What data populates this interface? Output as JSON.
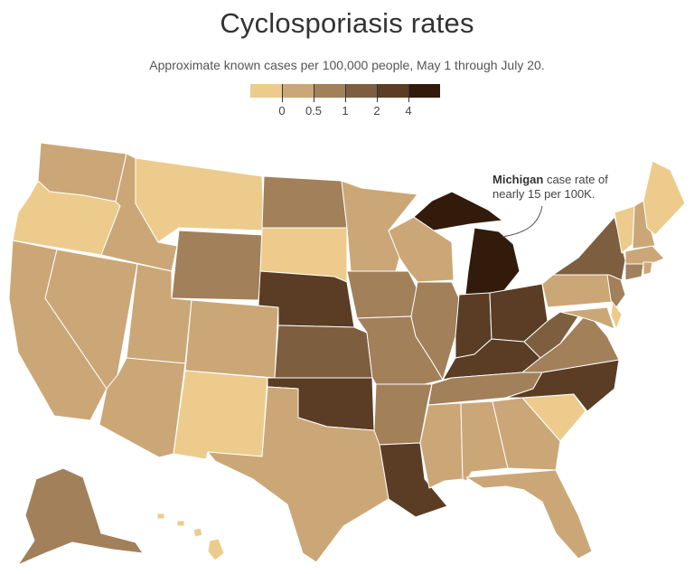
{
  "title": "Cyclosporiasis rates",
  "subtitle": "Approximate known cases per 100,000 people, May 1 through July 20.",
  "legend": {
    "colors": [
      "#eccb8c",
      "#cba777",
      "#a2805a",
      "#7d5f40",
      "#5a3d24",
      "#321b0b"
    ],
    "ticks": [
      "0",
      "0.5",
      "1",
      "2",
      "4"
    ]
  },
  "annotation": {
    "state": "Michigan",
    "line1_rest": " case rate of",
    "line2": "nearly 15 per 100K."
  },
  "map_data": {
    "Washington": 1,
    "Oregon": 0,
    "California": 1,
    "Nevada": 1,
    "Idaho": 1,
    "Montana": 0,
    "Wyoming": 2,
    "Utah": 1,
    "Arizona": 1,
    "Colorado": 1,
    "New Mexico": 0,
    "Alaska": 2,
    "Hawaii": 0,
    "North Dakota": 2,
    "South Dakota": 0,
    "Nebraska": 4,
    "Kansas": 3,
    "Oklahoma": 4,
    "Texas": 1,
    "Minnesota": 1,
    "Iowa": 2,
    "Missouri": 2,
    "Arkansas": 2,
    "Louisiana": 4,
    "Wisconsin": 1,
    "Illinois": 2,
    "Michigan": 5,
    "Indiana": 4,
    "Ohio": 4,
    "Kentucky": 4,
    "Tennessee": 2,
    "Mississippi": 1,
    "Alabama": 1,
    "Georgia": 1,
    "Florida": 1,
    "South Carolina": 0,
    "North Carolina": 4,
    "Virginia": 2,
    "West Virginia": 3,
    "Pennsylvania": 1,
    "New York": 3,
    "New Jersey": 2,
    "Maryland": 1,
    "Delaware": 0,
    "Vermont": 0,
    "New Hampshire": 1,
    "Maine": 0,
    "Massachusetts": 1,
    "Connecticut": 2,
    "Rhode Island": 1
  }
}
